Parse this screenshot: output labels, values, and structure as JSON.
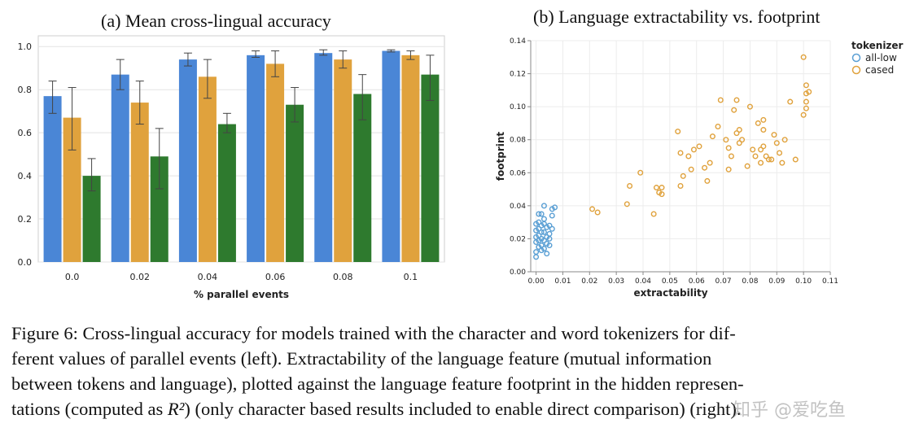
{
  "chart_data": [
    {
      "type": "bar",
      "title": "(a) Mean cross-lingual accuracy",
      "xlabel": "% parallel events",
      "ylabel": "",
      "categories": [
        "0.0",
        "0.02",
        "0.04",
        "0.06",
        "0.08",
        "0.1"
      ],
      "ylim": [
        0,
        1.05
      ],
      "yticks": [
        "0.0",
        "0.2",
        "0.4",
        "0.6",
        "0.8",
        "1.0"
      ],
      "grid": true,
      "series": [
        {
          "color": "#4a86d6",
          "values": [
            0.77,
            0.87,
            0.94,
            0.96,
            0.97,
            0.98
          ],
          "err_low": [
            0.69,
            0.8,
            0.91,
            0.95,
            0.96,
            0.975
          ],
          "err_high": [
            0.84,
            0.94,
            0.97,
            0.98,
            0.985,
            0.985
          ]
        },
        {
          "color": "#e0a23d",
          "values": [
            0.67,
            0.74,
            0.86,
            0.92,
            0.94,
            0.96
          ],
          "err_low": [
            0.52,
            0.64,
            0.76,
            0.86,
            0.9,
            0.94
          ],
          "err_high": [
            0.81,
            0.84,
            0.94,
            0.98,
            0.98,
            0.98
          ]
        },
        {
          "color": "#2e7a2e",
          "values": [
            0.4,
            0.49,
            0.64,
            0.73,
            0.78,
            0.87
          ],
          "err_low": [
            0.33,
            0.34,
            0.6,
            0.65,
            0.66,
            0.75
          ],
          "err_high": [
            0.48,
            0.62,
            0.69,
            0.81,
            0.87,
            0.96
          ]
        }
      ]
    },
    {
      "type": "scatter",
      "title": "(b) Language extractability vs. footprint",
      "xlabel": "extractability",
      "ylabel": "footprint",
      "xlim": [
        -0.002,
        0.11
      ],
      "ylim": [
        0,
        0.14
      ],
      "xticks": [
        "0.00",
        "0.01",
        "0.02",
        "0.03",
        "0.04",
        "0.05",
        "0.06",
        "0.07",
        "0.08",
        "0.09",
        "0.10",
        "0.11"
      ],
      "yticks": [
        "0.00",
        "0.02",
        "0.04",
        "0.06",
        "0.08",
        "0.10",
        "0.12",
        "0.14"
      ],
      "legend_title": "tokenizer",
      "legend_position": "top-right",
      "grid": true,
      "series": [
        {
          "name": "all-low",
          "color": "#5a9fd4",
          "points": [
            [
              0.0,
              0.012
            ],
            [
              0.001,
              0.015
            ],
            [
              0.0,
              0.018
            ],
            [
              0.002,
              0.02
            ],
            [
              0.001,
              0.022
            ],
            [
              0.003,
              0.019
            ],
            [
              0.0,
              0.025
            ],
            [
              0.002,
              0.028
            ],
            [
              0.001,
              0.03
            ],
            [
              0.004,
              0.021
            ],
            [
              0.003,
              0.024
            ],
            [
              0.002,
              0.016
            ],
            [
              0.005,
              0.023
            ],
            [
              0.001,
              0.035
            ],
            [
              0.003,
              0.032
            ],
            [
              0.0,
              0.009
            ],
            [
              0.004,
              0.027
            ],
            [
              0.002,
              0.013
            ],
            [
              0.006,
              0.038
            ],
            [
              0.007,
              0.039
            ],
            [
              0.005,
              0.028
            ],
            [
              0.001,
              0.026
            ],
            [
              0.003,
              0.014
            ],
            [
              0.004,
              0.017
            ],
            [
              0.002,
              0.035
            ],
            [
              0.006,
              0.034
            ],
            [
              0.0,
              0.021
            ],
            [
              0.003,
              0.029
            ],
            [
              0.005,
              0.02
            ],
            [
              0.001,
              0.019
            ],
            [
              0.004,
              0.011
            ],
            [
              0.002,
              0.024
            ],
            [
              0.006,
              0.026
            ],
            [
              0.003,
              0.04
            ],
            [
              0.0,
              0.029
            ],
            [
              0.005,
              0.016
            ]
          ]
        },
        {
          "name": "cased",
          "color": "#e0a23d",
          "points": [
            [
              0.021,
              0.038
            ],
            [
              0.023,
              0.036
            ],
            [
              0.034,
              0.041
            ],
            [
              0.035,
              0.052
            ],
            [
              0.039,
              0.06
            ],
            [
              0.044,
              0.035
            ],
            [
              0.045,
              0.051
            ],
            [
              0.046,
              0.048
            ],
            [
              0.047,
              0.051
            ],
            [
              0.047,
              0.047
            ],
            [
              0.053,
              0.085
            ],
            [
              0.054,
              0.072
            ],
            [
              0.054,
              0.052
            ],
            [
              0.055,
              0.058
            ],
            [
              0.057,
              0.07
            ],
            [
              0.058,
              0.062
            ],
            [
              0.059,
              0.074
            ],
            [
              0.061,
              0.076
            ],
            [
              0.063,
              0.063
            ],
            [
              0.064,
              0.055
            ],
            [
              0.065,
              0.066
            ],
            [
              0.066,
              0.082
            ],
            [
              0.068,
              0.088
            ],
            [
              0.069,
              0.104
            ],
            [
              0.071,
              0.08
            ],
            [
              0.072,
              0.062
            ],
            [
              0.072,
              0.075
            ],
            [
              0.073,
              0.07
            ],
            [
              0.074,
              0.098
            ],
            [
              0.075,
              0.084
            ],
            [
              0.075,
              0.104
            ],
            [
              0.076,
              0.078
            ],
            [
              0.076,
              0.086
            ],
            [
              0.077,
              0.08
            ],
            [
              0.079,
              0.064
            ],
            [
              0.08,
              0.1
            ],
            [
              0.081,
              0.074
            ],
            [
              0.082,
              0.07
            ],
            [
              0.083,
              0.09
            ],
            [
              0.084,
              0.066
            ],
            [
              0.084,
              0.074
            ],
            [
              0.085,
              0.086
            ],
            [
              0.085,
              0.092
            ],
            [
              0.085,
              0.076
            ],
            [
              0.086,
              0.07
            ],
            [
              0.087,
              0.068
            ],
            [
              0.088,
              0.068
            ],
            [
              0.089,
              0.083
            ],
            [
              0.09,
              0.078
            ],
            [
              0.091,
              0.072
            ],
            [
              0.092,
              0.066
            ],
            [
              0.093,
              0.08
            ],
            [
              0.095,
              0.103
            ],
            [
              0.097,
              0.068
            ],
            [
              0.1,
              0.13
            ],
            [
              0.101,
              0.113
            ],
            [
              0.101,
              0.108
            ],
            [
              0.101,
              0.103
            ],
            [
              0.101,
              0.099
            ],
            [
              0.1,
              0.095
            ],
            [
              0.102,
              0.109
            ]
          ]
        }
      ]
    }
  ],
  "caption": {
    "line1": "Figure 6: Cross-lingual accuracy for models trained with the character and word tokenizers for dif-",
    "line2": "ferent values of parallel events (left).  Extractability of the language feature (mutual information",
    "line3": "between tokens and language), plotted against the language feature footprint in the hidden represen-",
    "line4_pre": "tations (computed as ",
    "line4_math": "R²",
    "line4_post": ") (only character based results included to enable direct comparison) (right)."
  },
  "watermark": "知乎 @爱吃鱼"
}
